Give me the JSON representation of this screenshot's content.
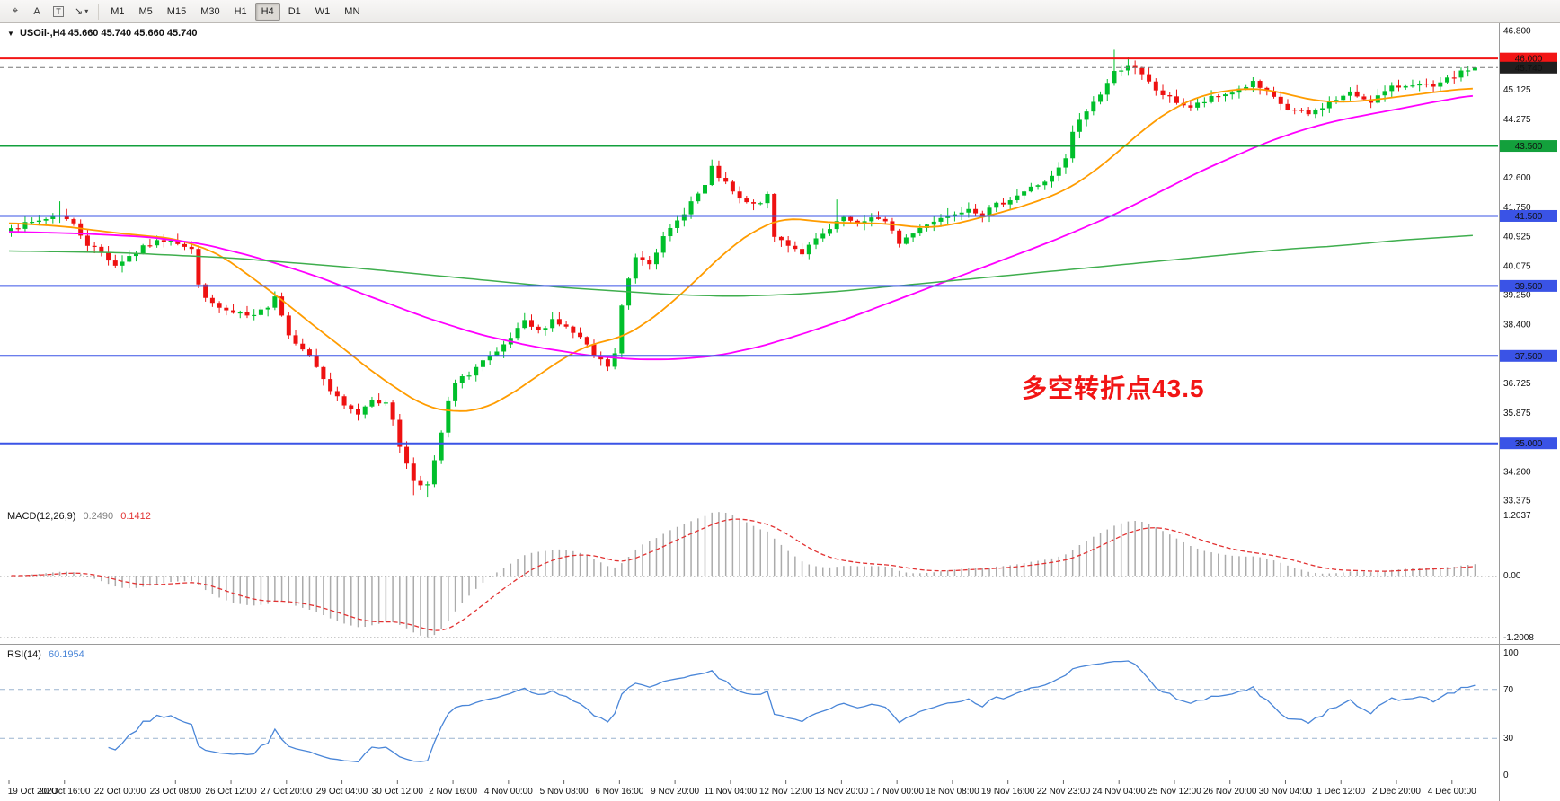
{
  "toolbar": {
    "icon_buttons": [
      {
        "name": "crosshair-tool-icon",
        "glyph": "⌖"
      },
      {
        "name": "text-label-tool-icon",
        "glyph": "A"
      },
      {
        "name": "text-tool-icon",
        "glyph": "T",
        "boxed": true
      },
      {
        "name": "arrow-tools-icon",
        "glyph": "↘",
        "has_caret": true
      }
    ],
    "timeframes": [
      "M1",
      "M5",
      "M15",
      "M30",
      "H1",
      "H4",
      "D1",
      "W1",
      "MN"
    ],
    "active_timeframe": "H4"
  },
  "chart_data": {
    "type": "candlestick",
    "symbol": "USOil-",
    "timeframe": "H4",
    "symbol_line": {
      "toggle_icon": "▼",
      "symbol": "USOil-,H4",
      "ohlc": "45.660 45.740 45.660 45.740"
    },
    "last_price": 45.74,
    "colors": {
      "up": "#00bf2b",
      "down": "#ee1111",
      "background": "#ffffff",
      "axis_text": "#111111"
    },
    "y_axis": {
      "max": 46.8,
      "min": 33.375,
      "ticks": [
        46.8,
        45.125,
        44.275,
        42.6,
        41.75,
        40.925,
        40.075,
        39.25,
        38.4,
        36.725,
        35.875,
        34.2,
        33.375
      ]
    },
    "levels": [
      {
        "price": 46.0,
        "color": "#f21515",
        "style": "solid",
        "width": 2,
        "badge": "46.000",
        "badge_bg": "#f21515"
      },
      {
        "price": 45.74,
        "color": "#777777",
        "style": "dashed",
        "width": 1,
        "badge": "45.740",
        "badge_bg": "#1f1f1f"
      },
      {
        "price": 43.5,
        "color": "#13a03c",
        "style": "solid",
        "width": 2,
        "badge": "43.500",
        "badge_bg": "#13a03c"
      },
      {
        "price": 41.5,
        "color": "#3a53e6",
        "style": "solid",
        "width": 2,
        "badge": "41.500",
        "badge_bg": "#3a53e6"
      },
      {
        "price": 39.5,
        "color": "#3a53e6",
        "style": "solid",
        "width": 2,
        "badge": "39.500",
        "badge_bg": "#3a53e6"
      },
      {
        "price": 37.5,
        "color": "#3a53e6",
        "style": "solid",
        "width": 2,
        "badge": "37.500",
        "badge_bg": "#3a53e6"
      },
      {
        "price": 35.0,
        "color": "#3a53e6",
        "style": "solid",
        "width": 2,
        "badge": "35.000",
        "badge_bg": "#3a53e6"
      }
    ],
    "annotation": {
      "text": "多空转折点43.5",
      "color": "#f21515",
      "x_index": 146,
      "price": 36.6,
      "font_size": 28
    },
    "candles_total": 212,
    "last_candle": {
      "open": 45.66,
      "high": 45.74,
      "low": 45.66,
      "close": 45.74
    },
    "price_path_anchors": [
      [
        0,
        41.15
      ],
      [
        3,
        41.3
      ],
      [
        7,
        41.55
      ],
      [
        9,
        41.25
      ],
      [
        11,
        40.7
      ],
      [
        13,
        40.45
      ],
      [
        15,
        40.1
      ],
      [
        17,
        40.35
      ],
      [
        20,
        40.7
      ],
      [
        23,
        40.85
      ],
      [
        26,
        40.55
      ],
      [
        27,
        39.5
      ],
      [
        29,
        38.95
      ],
      [
        32,
        38.7
      ],
      [
        35,
        38.6
      ],
      [
        37,
        38.95
      ],
      [
        38,
        39.25
      ],
      [
        40,
        38.1
      ],
      [
        42,
        37.75
      ],
      [
        44,
        37.2
      ],
      [
        46,
        36.5
      ],
      [
        48,
        36.05
      ],
      [
        50,
        35.85
      ],
      [
        52,
        36.3
      ],
      [
        54,
        36.1
      ],
      [
        55,
        35.7
      ],
      [
        56,
        34.95
      ],
      [
        57,
        34.4
      ],
      [
        58,
        33.95
      ],
      [
        60,
        33.8
      ],
      [
        61,
        34.45
      ],
      [
        62,
        35.3
      ],
      [
        63,
        36.15
      ],
      [
        64,
        36.7
      ],
      [
        66,
        37.0
      ],
      [
        68,
        37.35
      ],
      [
        70,
        37.55
      ],
      [
        72,
        38.0
      ],
      [
        74,
        38.45
      ],
      [
        76,
        38.2
      ],
      [
        78,
        38.55
      ],
      [
        80,
        38.3
      ],
      [
        82,
        38.0
      ],
      [
        84,
        37.5
      ],
      [
        86,
        37.2
      ],
      [
        87,
        37.55
      ],
      [
        88,
        38.9
      ],
      [
        89,
        39.7
      ],
      [
        90,
        40.35
      ],
      [
        92,
        40.2
      ],
      [
        94,
        40.85
      ],
      [
        96,
        41.35
      ],
      [
        98,
        41.9
      ],
      [
        100,
        42.35
      ],
      [
        101,
        42.85
      ],
      [
        103,
        42.4
      ],
      [
        105,
        41.95
      ],
      [
        107,
        41.8
      ],
      [
        109,
        42.05
      ],
      [
        110,
        40.9
      ],
      [
        112,
        40.7
      ],
      [
        114,
        40.45
      ],
      [
        116,
        40.8
      ],
      [
        118,
        41.1
      ],
      [
        120,
        41.45
      ],
      [
        122,
        41.2
      ],
      [
        124,
        41.5
      ],
      [
        126,
        41.3
      ],
      [
        128,
        40.75
      ],
      [
        130,
        41.0
      ],
      [
        132,
        41.3
      ],
      [
        134,
        41.45
      ],
      [
        136,
        41.6
      ],
      [
        138,
        41.75
      ],
      [
        140,
        41.55
      ],
      [
        142,
        41.8
      ],
      [
        144,
        42.0
      ],
      [
        146,
        42.2
      ],
      [
        148,
        42.4
      ],
      [
        150,
        42.6
      ],
      [
        152,
        43.1
      ],
      [
        153,
        43.9
      ],
      [
        155,
        44.5
      ],
      [
        157,
        45.0
      ],
      [
        159,
        45.6
      ],
      [
        161,
        45.85
      ],
      [
        163,
        45.5
      ],
      [
        165,
        45.1
      ],
      [
        167,
        44.85
      ],
      [
        170,
        44.6
      ],
      [
        173,
        44.85
      ],
      [
        176,
        45.05
      ],
      [
        179,
        45.3
      ],
      [
        181,
        45.0
      ],
      [
        184,
        44.55
      ],
      [
        187,
        44.4
      ],
      [
        190,
        44.75
      ],
      [
        193,
        45.0
      ],
      [
        196,
        44.8
      ],
      [
        199,
        45.15
      ],
      [
        202,
        45.3
      ],
      [
        205,
        45.15
      ],
      [
        208,
        45.5
      ],
      [
        210,
        45.66
      ],
      [
        211,
        45.74
      ]
    ],
    "wick_events": [
      {
        "i": 7,
        "high": 41.92
      },
      {
        "i": 58,
        "low": 33.52
      },
      {
        "i": 60,
        "low": 33.45
      },
      {
        "i": 101,
        "high": 43.05
      },
      {
        "i": 119,
        "high": 41.97
      },
      {
        "i": 159,
        "high": 46.25
      },
      {
        "i": 161,
        "high": 46.05
      }
    ],
    "moving_averages": [
      {
        "name": "ma-fast",
        "color": "#ff9c00",
        "width": 1.8,
        "anchors": [
          [
            0,
            41.3
          ],
          [
            8,
            41.2
          ],
          [
            16,
            41.0
          ],
          [
            24,
            40.85
          ],
          [
            30,
            40.45
          ],
          [
            36,
            39.6
          ],
          [
            40,
            39.0
          ],
          [
            44,
            38.35
          ],
          [
            48,
            37.75
          ],
          [
            52,
            37.1
          ],
          [
            56,
            36.55
          ],
          [
            60,
            36.05
          ],
          [
            64,
            35.9
          ],
          [
            68,
            35.95
          ],
          [
            72,
            36.35
          ],
          [
            76,
            36.9
          ],
          [
            80,
            37.45
          ],
          [
            84,
            37.85
          ],
          [
            88,
            38.0
          ],
          [
            92,
            38.45
          ],
          [
            96,
            39.1
          ],
          [
            100,
            39.85
          ],
          [
            104,
            40.6
          ],
          [
            108,
            41.15
          ],
          [
            112,
            41.45
          ],
          [
            116,
            41.35
          ],
          [
            120,
            41.3
          ],
          [
            124,
            41.3
          ],
          [
            128,
            41.25
          ],
          [
            132,
            41.15
          ],
          [
            136,
            41.25
          ],
          [
            140,
            41.45
          ],
          [
            144,
            41.65
          ],
          [
            148,
            41.9
          ],
          [
            152,
            42.2
          ],
          [
            156,
            42.7
          ],
          [
            160,
            43.35
          ],
          [
            164,
            44.05
          ],
          [
            168,
            44.6
          ],
          [
            172,
            44.95
          ],
          [
            176,
            45.1
          ],
          [
            180,
            45.15
          ],
          [
            184,
            45.0
          ],
          [
            188,
            44.8
          ],
          [
            192,
            44.75
          ],
          [
            196,
            44.8
          ],
          [
            200,
            44.9
          ],
          [
            204,
            45.0
          ],
          [
            208,
            45.1
          ],
          [
            211,
            45.15
          ]
        ]
      },
      {
        "name": "ma-mid",
        "color": "#ff00ff",
        "width": 1.8,
        "anchors": [
          [
            0,
            41.05
          ],
          [
            10,
            41.0
          ],
          [
            20,
            40.9
          ],
          [
            28,
            40.7
          ],
          [
            36,
            40.3
          ],
          [
            44,
            39.8
          ],
          [
            52,
            39.2
          ],
          [
            60,
            38.6
          ],
          [
            68,
            38.1
          ],
          [
            76,
            37.75
          ],
          [
            84,
            37.5
          ],
          [
            90,
            37.4
          ],
          [
            96,
            37.4
          ],
          [
            102,
            37.5
          ],
          [
            108,
            37.75
          ],
          [
            114,
            38.1
          ],
          [
            120,
            38.5
          ],
          [
            126,
            38.95
          ],
          [
            132,
            39.4
          ],
          [
            138,
            39.85
          ],
          [
            144,
            40.3
          ],
          [
            150,
            40.75
          ],
          [
            156,
            41.25
          ],
          [
            160,
            41.6
          ],
          [
            164,
            42.0
          ],
          [
            168,
            42.4
          ],
          [
            172,
            42.8
          ],
          [
            176,
            43.15
          ],
          [
            180,
            43.5
          ],
          [
            184,
            43.8
          ],
          [
            188,
            44.05
          ],
          [
            192,
            44.25
          ],
          [
            196,
            44.4
          ],
          [
            200,
            44.55
          ],
          [
            204,
            44.7
          ],
          [
            208,
            44.85
          ],
          [
            211,
            44.95
          ]
        ]
      },
      {
        "name": "ma-slow",
        "color": "#3fae4e",
        "width": 1.5,
        "anchors": [
          [
            0,
            40.5
          ],
          [
            16,
            40.45
          ],
          [
            32,
            40.3
          ],
          [
            48,
            40.05
          ],
          [
            64,
            39.75
          ],
          [
            80,
            39.45
          ],
          [
            96,
            39.25
          ],
          [
            104,
            39.2
          ],
          [
            112,
            39.25
          ],
          [
            120,
            39.35
          ],
          [
            128,
            39.5
          ],
          [
            136,
            39.65
          ],
          [
            144,
            39.8
          ],
          [
            152,
            39.95
          ],
          [
            160,
            40.1
          ],
          [
            168,
            40.25
          ],
          [
            176,
            40.4
          ],
          [
            184,
            40.55
          ],
          [
            192,
            40.65
          ],
          [
            200,
            40.8
          ],
          [
            208,
            40.9
          ],
          [
            211,
            40.95
          ]
        ]
      }
    ],
    "x_labels": [
      "19 Oct 2020",
      "20 Oct 16:00",
      "22 Oct 00:00",
      "23 Oct 08:00",
      "26 Oct 12:00",
      "27 Oct 20:00",
      "29 Oct 04:00",
      "30 Oct 12:00",
      "2 Nov 16:00",
      "4 Nov 00:00",
      "5 Nov 08:00",
      "6 Nov 16:00",
      "9 Nov 20:00",
      "11 Nov 04:00",
      "12 Nov 12:00",
      "13 Nov 20:00",
      "17 Nov 00:00",
      "18 Nov 08:00",
      "19 Nov 16:00",
      "22 Nov 23:00",
      "24 Nov 04:00",
      "25 Nov 12:00",
      "26 Nov 20:00",
      "30 Nov 04:00",
      "1 Dec 12:00",
      "2 Dec 20:00",
      "4 Dec 00:00"
    ],
    "indicators": [
      {
        "id": "macd",
        "title": "MACD(12,26,9)",
        "values": [
          "0.2490",
          "0.1412"
        ],
        "axis_labels": [
          "1.2037",
          "0.00",
          "-1.2008"
        ],
        "fast": 12,
        "slow": 26,
        "signal": 9,
        "histogram_color": "#ababab",
        "signal_color": "#e23232",
        "signal_style": "dashed"
      },
      {
        "id": "rsi",
        "title": "RSI(14)",
        "value": "60.1954",
        "axis_labels": [
          "100",
          "70",
          "30",
          "0"
        ],
        "period": 14,
        "levels": [
          70,
          30
        ],
        "line_color": "#4a86d8",
        "level_color": "#9ab3cf"
      }
    ]
  }
}
